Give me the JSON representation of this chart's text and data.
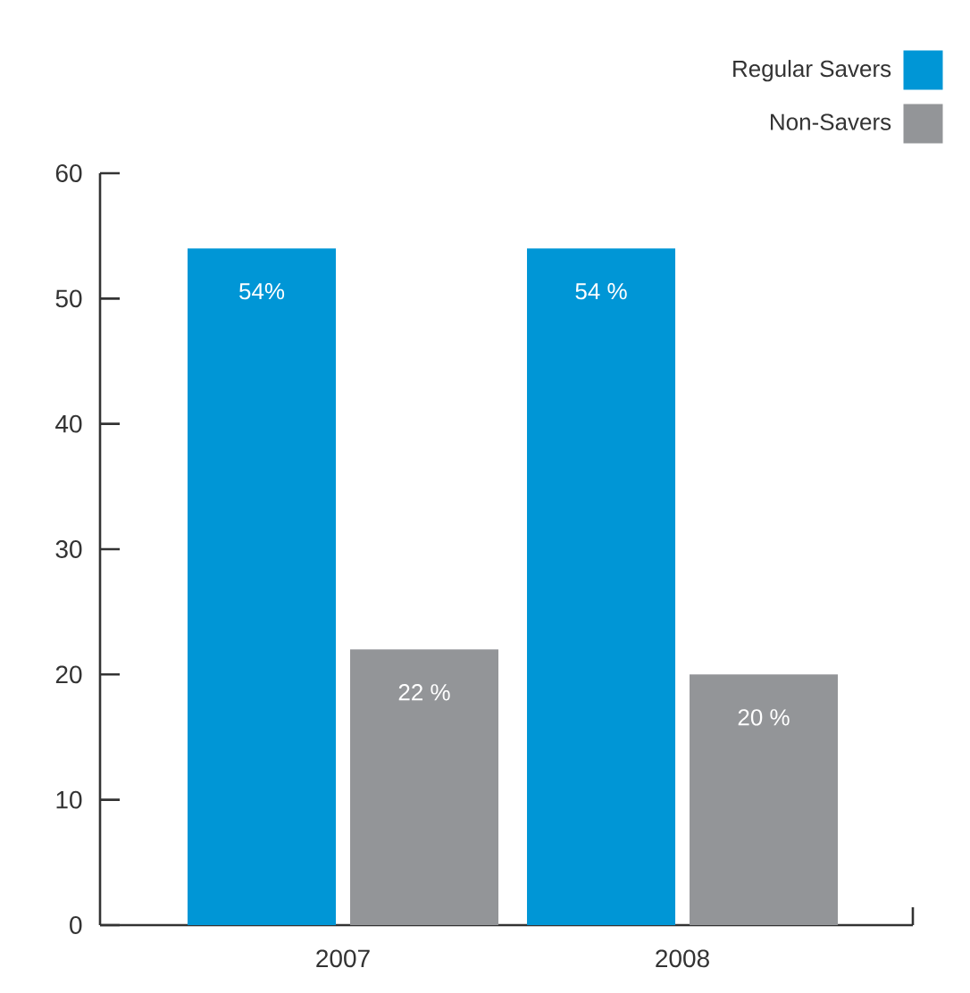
{
  "chart_data": {
    "type": "bar",
    "categories": [
      "2007",
      "2008"
    ],
    "series": [
      {
        "name": "Regular Savers",
        "color": "#0096d6",
        "values": [
          54,
          54
        ],
        "value_labels": [
          "54%",
          "54 %"
        ]
      },
      {
        "name": "Non-Savers",
        "color": "#939598",
        "values": [
          22,
          20
        ],
        "value_labels": [
          "22 %",
          "20 %"
        ]
      }
    ],
    "ylim": [
      0,
      60
    ],
    "yticks": [
      0,
      10,
      20,
      30,
      40,
      50,
      60
    ],
    "legend": "top right"
  }
}
